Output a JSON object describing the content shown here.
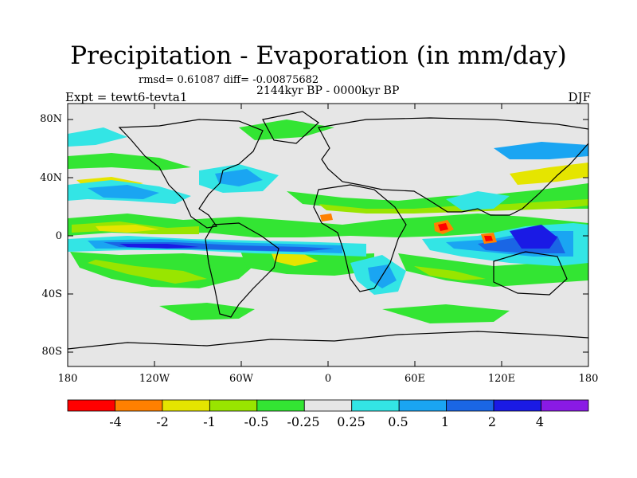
{
  "title": "Precipitation - Evaporation (in mm/day)",
  "stats": {
    "rmsd_text": "rmsd= 0.61087 diff= -0.00875682"
  },
  "period": "2144kyr BP - 0000kyr BP",
  "experiment": "Expt = tewt6-tevta1",
  "season": "DJF",
  "axes": {
    "lat_ticks": [
      "80N",
      "40N",
      "0",
      "40S",
      "80S"
    ],
    "lon_ticks": [
      "180",
      "120W",
      "60W",
      "0",
      "60E",
      "120E",
      "180"
    ]
  },
  "colorbar": {
    "labels": [
      "-4",
      "-2",
      "-1",
      "-0.5",
      "-0.25",
      "0.25",
      "0.5",
      "1",
      "2",
      "4"
    ],
    "colors": [
      "#ff0000",
      "#ff8000",
      "#e5e500",
      "#99e500",
      "#33e533",
      "#e6e6e6",
      "#33e5e5",
      "#1aa5f2",
      "#1a66e5",
      "#1a1ae5",
      "#8a1ae5"
    ]
  }
}
